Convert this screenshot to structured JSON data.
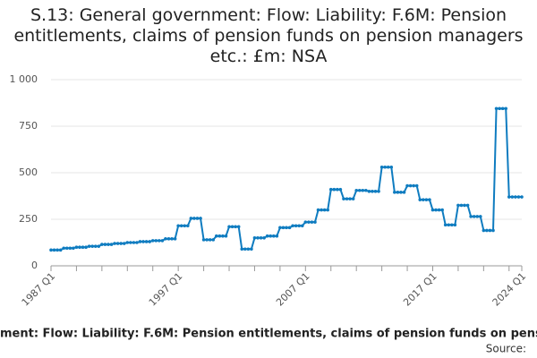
{
  "chart_data": {
    "type": "line",
    "title": "S.13: General government: Flow: Liability: F.6M: Pension entitlements, claims of pension funds on pension managers etc.: £m: NSA",
    "footer": "ment: Flow: Liability: F.6M: Pension entitlements, claims of pension funds on pension",
    "source": "Source:",
    "categories": [
      "1987 Q1",
      null,
      null,
      null,
      null,
      null,
      null,
      null,
      null,
      null,
      null,
      null,
      null,
      null,
      null,
      null,
      null,
      null,
      null,
      null,
      null,
      null,
      null,
      null,
      null,
      null,
      null,
      null,
      null,
      null,
      null,
      null,
      null,
      null,
      null,
      null,
      null,
      null,
      null,
      null,
      "1997 Q1",
      null,
      null,
      null,
      null,
      null,
      null,
      null,
      null,
      null,
      null,
      null,
      null,
      null,
      null,
      null,
      null,
      null,
      null,
      null,
      null,
      null,
      null,
      null,
      null,
      null,
      null,
      null,
      null,
      null,
      null,
      null,
      null,
      null,
      null,
      null,
      null,
      null,
      null,
      null,
      "2007 Q1",
      null,
      null,
      null,
      null,
      null,
      null,
      null,
      null,
      null,
      null,
      null,
      null,
      null,
      null,
      null,
      null,
      null,
      null,
      null,
      null,
      null,
      null,
      null,
      null,
      null,
      null,
      null,
      null,
      null,
      null,
      null,
      null,
      null,
      null,
      null,
      null,
      null,
      null,
      null,
      "2017 Q1",
      null,
      null,
      null,
      null,
      null,
      null,
      null,
      null,
      null,
      null,
      null,
      null,
      null,
      null,
      null,
      null,
      null,
      null,
      null,
      null,
      null,
      null,
      null,
      null,
      null,
      null,
      null,
      "2024 Q1"
    ],
    "series": [
      {
        "name": "S.13",
        "color": "#0f7cc0",
        "values": [
          85,
          85,
          85,
          85,
          95,
          95,
          95,
          95,
          100,
          100,
          100,
          100,
          105,
          105,
          105,
          105,
          115,
          115,
          115,
          115,
          120,
          120,
          120,
          120,
          125,
          125,
          125,
          125,
          130,
          130,
          130,
          130,
          135,
          135,
          135,
          135,
          145,
          145,
          145,
          145,
          215,
          215,
          215,
          215,
          255,
          255,
          255,
          255,
          140,
          140,
          140,
          140,
          160,
          160,
          160,
          160,
          210,
          210,
          210,
          210,
          90,
          90,
          90,
          90,
          150,
          150,
          150,
          150,
          160,
          160,
          160,
          160,
          205,
          205,
          205,
          205,
          215,
          215,
          215,
          215,
          235,
          235,
          235,
          235,
          300,
          300,
          300,
          300,
          410,
          410,
          410,
          410,
          360,
          360,
          360,
          360,
          405,
          405,
          405,
          405,
          400,
          400,
          400,
          400,
          530,
          530,
          530,
          530,
          395,
          395,
          395,
          395,
          430,
          430,
          430,
          430,
          355,
          355,
          355,
          355,
          300,
          300,
          300,
          300,
          220,
          220,
          220,
          220,
          325,
          325,
          325,
          325,
          265,
          265,
          265,
          265,
          190,
          190,
          190,
          190,
          845,
          845,
          845,
          845,
          370,
          370,
          370,
          370,
          370
        ]
      }
    ],
    "ylim": [
      0,
      1000
    ],
    "yticks": [
      0,
      250,
      500,
      750,
      {
        "value": 1000,
        "label": "1 000"
      }
    ],
    "grid": true
  }
}
